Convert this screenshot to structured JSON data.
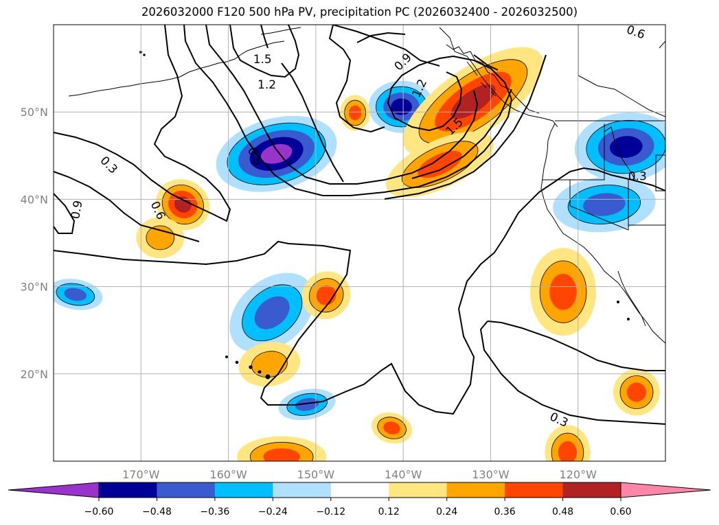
{
  "title": "2026032000 F120 500 hPa PV, precipitation PC (2026032400 - 2026032500)",
  "map": {
    "projection": "PlateCarree",
    "lon_range": [
      -180,
      -110
    ],
    "lat_range": [
      10,
      60
    ],
    "lon_ticks": [
      {
        "value": -170,
        "label": "170°W"
      },
      {
        "value": -160,
        "label": "160°W"
      },
      {
        "value": -150,
        "label": "150°W"
      },
      {
        "value": -140,
        "label": "140°W"
      },
      {
        "value": -130,
        "label": "130°W"
      },
      {
        "value": -120,
        "label": "120°W"
      }
    ],
    "lat_ticks": [
      {
        "value": 20,
        "label": "20°N"
      },
      {
        "value": 30,
        "label": "30°N"
      },
      {
        "value": 40,
        "label": "40°N"
      },
      {
        "value": 50,
        "label": "50°N"
      }
    ],
    "tick_color": "#808080",
    "grid_color": "#b0b0b0"
  },
  "pv_contours": {
    "levels": [
      0.3,
      0.6,
      0.9,
      1.2,
      1.5
    ],
    "labels": [
      {
        "text": "1.5",
        "lon": -156.1,
        "lat": 56.0,
        "angle": 0
      },
      {
        "text": "1.2",
        "lon": -155.6,
        "lat": 53.1,
        "angle": 0
      },
      {
        "text": "0.9",
        "lon": -140.0,
        "lat": 55.7,
        "angle": -45
      },
      {
        "text": "1.2",
        "lon": -138.1,
        "lat": 52.7,
        "angle": -65
      },
      {
        "text": "1.5",
        "lon": -134.1,
        "lat": 48.3,
        "angle": -45
      },
      {
        "text": "0.6",
        "lon": -157.0,
        "lat": 44.9,
        "angle": 65
      },
      {
        "text": "0.3",
        "lon": -173.7,
        "lat": 43.9,
        "angle": 45
      },
      {
        "text": "0.6",
        "lon": -168.1,
        "lat": 38.7,
        "angle": 65
      },
      {
        "text": "0.9",
        "lon": -177.3,
        "lat": 38.8,
        "angle": -80
      },
      {
        "text": "0.3",
        "lon": -113.2,
        "lat": 42.6,
        "angle": 0
      },
      {
        "text": "0.6",
        "lon": -113.4,
        "lat": 59.1,
        "angle": 20
      },
      {
        "text": "0.3",
        "lon": -122.2,
        "lat": 14.7,
        "angle": 25
      }
    ]
  },
  "precip_anomaly": {
    "units": "PC",
    "levels": [
      -0.6,
      -0.48,
      -0.36,
      -0.24,
      -0.12,
      0.12,
      0.24,
      0.36,
      0.48,
      0.6
    ],
    "colors": {
      "neg_extreme": "#9933cc",
      "neg_060": "#000099",
      "neg_048": "#3a5bd0",
      "neg_036": "#00bfff",
      "neg_024": "#b0e0ff",
      "neutral": "#ffffff",
      "pos_012": "#ffe680",
      "pos_024": "#ffa500",
      "pos_036": "#ff4500",
      "pos_048": "#b22222",
      "pos_extreme": "#ff85a8"
    },
    "features": [
      {
        "sign": "negative",
        "lon": -154.5,
        "lat": 45.2,
        "peak": "< -0.60"
      },
      {
        "sign": "negative",
        "lon": -140.2,
        "lat": 50.6,
        "peak": "-0.60"
      },
      {
        "sign": "negative",
        "lon": -114.5,
        "lat": 46.0,
        "peak": "-0.60"
      },
      {
        "sign": "negative",
        "lon": -117.0,
        "lat": 39.4,
        "peak": "-0.48"
      },
      {
        "sign": "negative",
        "lon": -155.0,
        "lat": 27.0,
        "peak": "-0.48"
      },
      {
        "sign": "negative",
        "lon": -177.5,
        "lat": 29.1,
        "peak": "-0.48"
      },
      {
        "sign": "negative",
        "lon": -151.0,
        "lat": 16.5,
        "peak": "-0.48"
      },
      {
        "sign": "positive",
        "lon": -132.0,
        "lat": 51.2,
        "peak": "0.48"
      },
      {
        "sign": "positive",
        "lon": -135.8,
        "lat": 44.0,
        "peak": "0.36"
      },
      {
        "sign": "positive",
        "lon": -165.2,
        "lat": 39.4,
        "peak": "0.48"
      },
      {
        "sign": "positive",
        "lon": -121.7,
        "lat": 29.4,
        "peak": "0.36"
      },
      {
        "sign": "positive",
        "lon": -148.8,
        "lat": 29.0,
        "peak": "0.36"
      },
      {
        "sign": "positive",
        "lon": -155.3,
        "lat": 21.1,
        "peak": "0.24"
      },
      {
        "sign": "positive",
        "lon": -113.3,
        "lat": 17.9,
        "peak": "0.36"
      },
      {
        "sign": "positive",
        "lon": -141.3,
        "lat": 13.8,
        "peak": "0.36"
      },
      {
        "sign": "positive",
        "lon": -121.2,
        "lat": 11.0,
        "peak": "0.36"
      },
      {
        "sign": "positive",
        "lon": -153.9,
        "lat": 10.5,
        "peak": "0.36"
      },
      {
        "sign": "positive",
        "lon": -145.5,
        "lat": 49.9,
        "peak": "0.36"
      },
      {
        "sign": "positive",
        "lon": -167.8,
        "lat": 35.6,
        "peak": "0.24"
      }
    ]
  },
  "colorbar": {
    "tick_labels": [
      "−0.60",
      "−0.48",
      "−0.36",
      "−0.24",
      "−0.12",
      "0.12",
      "0.24",
      "0.36",
      "0.48",
      "0.60"
    ],
    "extend": "both"
  }
}
